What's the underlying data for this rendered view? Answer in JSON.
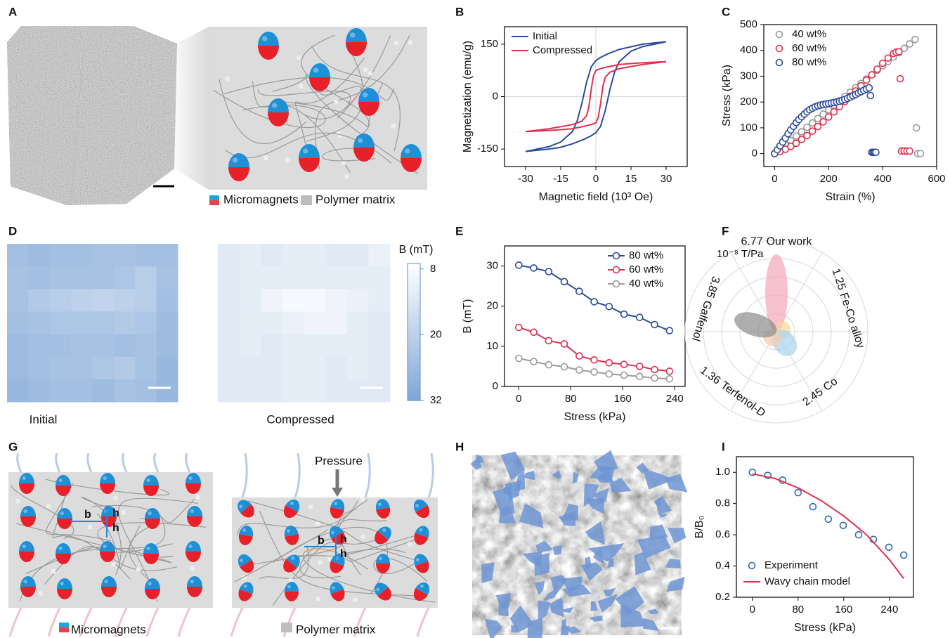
{
  "illustrations": {
    "A": {
      "label": "A",
      "legend": [
        "Micromagnets",
        "Polymer matrix"
      ]
    },
    "G": {
      "label": "G",
      "pressure": "Pressure",
      "dimensions": [
        "b",
        "h",
        "h",
        "b",
        "h",
        "h"
      ],
      "legend": [
        "Micromagnets",
        "Polymer matrix"
      ]
    },
    "H": {
      "label": "H"
    }
  },
  "chart_data": [
    {
      "label": "B",
      "type": "line",
      "xlabel": "Magnetic field (10³ Oe)",
      "ylabel": "Magnetization (emu/g)",
      "xlim": [
        -39,
        39
      ],
      "ylim": [
        -200,
        200
      ],
      "xticks": [
        -30,
        -15,
        0,
        15,
        30
      ],
      "yticks": [
        -150,
        0,
        150
      ],
      "zero_lines": true,
      "legend": "upper left",
      "mode": "lines",
      "series": [
        {
          "name": "Initial",
          "color": "#2b4c9b",
          "x": [
            30,
            20,
            10,
            5,
            2,
            0,
            -2,
            -4,
            -6,
            -8,
            -10,
            -15,
            -20,
            -30,
            -20,
            -15,
            -10,
            -5,
            -2,
            0,
            2,
            4,
            6,
            8,
            10,
            15,
            20,
            30
          ],
          "values": [
            157,
            150,
            135,
            122,
            112,
            103,
            85,
            40,
            -20,
            -70,
            -100,
            -130,
            -143,
            -157,
            -150,
            -145,
            -135,
            -122,
            -112,
            -103,
            -85,
            -40,
            20,
            70,
            100,
            130,
            143,
            157
          ]
        },
        {
          "name": "Compressed",
          "color": "#e0304f",
          "x": [
            30,
            20,
            10,
            5,
            2,
            0,
            -1,
            -2,
            -3,
            -4,
            -6,
            -10,
            -20,
            -30,
            -20,
            -10,
            -5,
            -2,
            0,
            1,
            2,
            3,
            4,
            6,
            10,
            20,
            30
          ],
          "values": [
            100,
            97,
            92,
            85,
            80,
            75,
            60,
            20,
            -30,
            -55,
            -70,
            -80,
            -92,
            -100,
            -97,
            -92,
            -85,
            -80,
            -75,
            -60,
            -20,
            30,
            55,
            70,
            80,
            92,
            100
          ]
        }
      ]
    },
    {
      "label": "C",
      "type": "scatter",
      "xlabel": "Strain (%)",
      "ylabel": "Stress (kPa)",
      "xlim": [
        -40,
        600
      ],
      "ylim": [
        -50,
        500
      ],
      "xticks": [
        0,
        200,
        400,
        600
      ],
      "yticks": [
        0,
        100,
        200,
        300,
        400,
        500
      ],
      "legend": "upper left",
      "mode": "markers",
      "series": [
        {
          "name": "40 wt%",
          "color": "#9a9a9a",
          "x": [
            0,
            20,
            40,
            60,
            80,
            100,
            120,
            140,
            160,
            180,
            200,
            220,
            240,
            260,
            280,
            300,
            320,
            340,
            360,
            380,
            400,
            420,
            440,
            460,
            480,
            500,
            520,
            525,
            530,
            540
          ],
          "values": [
            0,
            17,
            34,
            51,
            68,
            85,
            102,
            119,
            136,
            153,
            170,
            187,
            204,
            221,
            238,
            255,
            272,
            289,
            306,
            323,
            340,
            357,
            374,
            391,
            408,
            425,
            442,
            100,
            0,
            0
          ]
        },
        {
          "name": "60 wt%",
          "color": "#e0304f",
          "x": [
            0,
            20,
            40,
            60,
            80,
            100,
            120,
            140,
            160,
            180,
            200,
            220,
            240,
            260,
            280,
            300,
            320,
            340,
            360,
            380,
            400,
            420,
            440,
            450,
            460,
            465,
            470,
            480,
            490,
            500
          ],
          "values": [
            0,
            8,
            17,
            28,
            40,
            55,
            70,
            87,
            105,
            123,
            142,
            162,
            182,
            202,
            222,
            243,
            263,
            285,
            305,
            327,
            350,
            370,
            388,
            393,
            395,
            290,
            10,
            10,
            10,
            10
          ]
        },
        {
          "name": "80 wt%",
          "color": "#2b4c9b",
          "x": [
            0,
            10,
            20,
            30,
            40,
            50,
            60,
            70,
            80,
            90,
            100,
            110,
            120,
            130,
            140,
            150,
            160,
            170,
            180,
            190,
            200,
            210,
            220,
            230,
            240,
            250,
            260,
            270,
            280,
            290,
            300,
            310,
            320,
            330,
            340,
            350,
            355,
            360,
            365,
            370,
            375
          ],
          "values": [
            0,
            15,
            30,
            45,
            60,
            77,
            92,
            106,
            120,
            132,
            143,
            153,
            162,
            170,
            176,
            181,
            185,
            188,
            190,
            192,
            194,
            196,
            198,
            200,
            203,
            206,
            210,
            214,
            219,
            224,
            229,
            235,
            240,
            245,
            250,
            255,
            225,
            5,
            5,
            5,
            5
          ]
        }
      ]
    },
    {
      "label": "D",
      "type": "heatmap",
      "colorbar_label": "B (mT)",
      "clim": [
        7,
        32
      ],
      "cticks": [
        8,
        20,
        32
      ],
      "colors": [
        "#ffffff",
        "#7fa6d6"
      ],
      "panels": [
        {
          "title": "Initial",
          "values": [
            [
              25,
              26,
              25,
              25,
              24,
              24,
              25,
              25
            ],
            [
              24,
              25,
              24,
              24,
              24,
              23,
              21,
              24
            ],
            [
              24,
              22,
              21,
              20,
              19,
              20,
              21,
              25
            ],
            [
              25,
              24,
              23,
              23,
              23,
              22,
              23,
              26
            ],
            [
              26,
              25,
              25,
              24,
              24,
              25,
              24,
              26
            ],
            [
              26,
              25,
              24,
              24,
              23,
              22,
              24,
              27
            ],
            [
              27,
              26,
              25,
              25,
              26,
              24,
              25,
              27
            ]
          ]
        },
        {
          "title": "Compressed",
          "values": [
            [
              13,
              12,
              13,
              12,
              12,
              13,
              13,
              11
            ],
            [
              13,
              12,
              12,
              12,
              12,
              12,
              12,
              12
            ],
            [
              13,
              12,
              10,
              9,
              9,
              10,
              11,
              12
            ],
            [
              13,
              12,
              12,
              11,
              10,
              10,
              12,
              13
            ],
            [
              13,
              12,
              13,
              12,
              12,
              12,
              12,
              13
            ],
            [
              13,
              13,
              13,
              12,
              12,
              13,
              12,
              13
            ],
            [
              13,
              13,
              13,
              12,
              12,
              13,
              13,
              13
            ]
          ]
        }
      ]
    },
    {
      "label": "E",
      "type": "line",
      "xlabel": "Stress (kPa)",
      "ylabel": "B (mT)",
      "xlim": [
        -22,
        256
      ],
      "ylim": [
        0,
        35
      ],
      "xticks": [
        0,
        80,
        160,
        240
      ],
      "yticks": [
        0,
        10,
        20,
        30
      ],
      "legend": "upper right",
      "mode": "lines+markers",
      "x": [
        0,
        23,
        46,
        70,
        93,
        116,
        139,
        162,
        186,
        209,
        232
      ],
      "series": [
        {
          "name": "80 wt%",
          "color": "#2b4c9b",
          "values": [
            30.2,
            29.5,
            28.6,
            26.1,
            23.7,
            21.1,
            19.9,
            18.0,
            17.2,
            15.4,
            13.9
          ]
        },
        {
          "name": "60 wt%",
          "color": "#e0304f",
          "values": [
            14.7,
            13.5,
            11.4,
            10.6,
            7.6,
            6.6,
            5.9,
            5.5,
            5.0,
            4.2,
            3.8
          ]
        },
        {
          "name": "40 wt%",
          "color": "#9a9a9a",
          "values": [
            7.0,
            6.2,
            5.4,
            4.9,
            4.1,
            3.6,
            3.1,
            2.8,
            2.5,
            2.1,
            1.9
          ]
        }
      ]
    },
    {
      "label": "F",
      "type": "polar",
      "unit": "10⁻⁸ T/Pa",
      "rlim": [
        0,
        8
      ],
      "categories": [
        "Our work",
        "Fe-Co alloy",
        "Co",
        "Terfenol-D",
        "Galfenol"
      ],
      "values": [
        6.77,
        1.25,
        2.45,
        1.36,
        3.85
      ],
      "colors": [
        "#f4a7b9",
        "#f9d49a",
        "#a6d3ee",
        "#f7c9a8",
        "#8c8c8c"
      ]
    },
    {
      "label": "I",
      "type": "scatter",
      "xlabel": "Stress (kPa)",
      "ylabel": "B/B₀",
      "xlim": [
        -28,
        282
      ],
      "ylim": [
        0.2,
        1.1
      ],
      "xticks": [
        0,
        80,
        160,
        240
      ],
      "yticks": [
        0.2,
        0.4,
        0.6,
        0.8,
        {
          "value": 1,
          "label": "1.0"
        }
      ],
      "legend": "lower left",
      "series": [
        {
          "name": "Experiment",
          "color": "#2b6cb0",
          "mode": "markers",
          "x": [
            0,
            27,
            53,
            80,
            106,
            133,
            159,
            186,
            212,
            239,
            265
          ],
          "values": [
            1.0,
            0.98,
            0.95,
            0.87,
            0.78,
            0.7,
            0.66,
            0.6,
            0.57,
            0.52,
            0.47
          ]
        },
        {
          "name": "Wavy chain model",
          "color": "#e0304f",
          "mode": "lines",
          "x": [
            0,
            40,
            80,
            120,
            160,
            200,
            240,
            265
          ],
          "values": [
            0.99,
            0.96,
            0.9,
            0.82,
            0.72,
            0.6,
            0.44,
            0.32
          ]
        }
      ]
    }
  ]
}
